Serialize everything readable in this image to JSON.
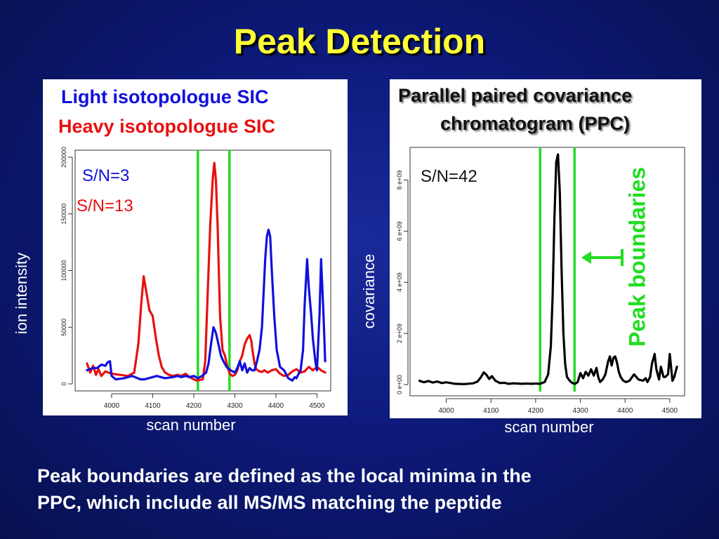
{
  "title": "Peak Detection",
  "left_panel": {
    "legend_light": "Light isotopologue SIC",
    "legend_heavy": "Heavy isotopologue SIC",
    "sn_light": "S/N=3",
    "sn_heavy": "S/N=13",
    "ylabel": "ion intensity",
    "xlabel": "scan number"
  },
  "right_panel": {
    "title_line1": "Parallel paired covariance",
    "title_line2": "chromatogram (PPC)",
    "sn": "S/N=42",
    "ylabel": "covariance",
    "xlabel": "scan number",
    "annotation": "Peak boundaries"
  },
  "footer": {
    "line1": "Peak boundaries are defined as the local minima in the",
    "line2": "PPC, which include all MS/MS matching the peptide"
  },
  "colors": {
    "light": "#1010dd",
    "heavy": "#e81010",
    "ppc": "#000000",
    "boundary": "#22dd22",
    "title": "#ffff33"
  },
  "chart_data": [
    {
      "type": "line",
      "xlim": [
        3930,
        4530
      ],
      "ylim": [
        0,
        200000
      ],
      "xticks": [
        4000,
        4100,
        4200,
        4300,
        4400,
        4500
      ],
      "yticks": [
        0,
        50000,
        100000,
        150000,
        200000
      ],
      "ytick_labels": [
        "0",
        "50000",
        "100000",
        "150000",
        "200000"
      ],
      "boundaries": [
        4210,
        4287
      ],
      "series": [
        {
          "key": "heavy",
          "x": [
            3940,
            3948,
            3955,
            3962,
            3968,
            3975,
            3985,
            4000,
            4020,
            4040,
            4055,
            4065,
            4072,
            4078,
            4085,
            4092,
            4100,
            4108,
            4115,
            4122,
            4130,
            4140,
            4150,
            4160,
            4170,
            4180,
            4190,
            4200,
            4208,
            4215,
            4222,
            4228,
            4234,
            4240,
            4246,
            4250,
            4254,
            4258,
            4264,
            4270,
            4276,
            4282,
            4288,
            4294,
            4300,
            4306,
            4312,
            4318,
            4324,
            4330,
            4336,
            4340,
            4344,
            4348,
            4352,
            4356,
            4360,
            4366,
            4372,
            4380,
            4390,
            4400,
            4410,
            4420,
            4430,
            4440,
            4450,
            4460,
            4470,
            4480,
            4490,
            4500,
            4510,
            4520
          ],
          "y": [
            18000,
            10000,
            16000,
            8000,
            13000,
            7000,
            11000,
            9000,
            8000,
            7000,
            10000,
            35000,
            70000,
            95000,
            80000,
            65000,
            60000,
            40000,
            25000,
            15000,
            10000,
            8000,
            7000,
            8000,
            7000,
            9000,
            6000,
            4000,
            3000,
            3500,
            4000,
            20000,
            80000,
            140000,
            180000,
            195000,
            180000,
            140000,
            60000,
            30000,
            25000,
            15000,
            9000,
            7000,
            8000,
            12000,
            20000,
            25000,
            35000,
            40000,
            43000,
            38000,
            27000,
            18000,
            13000,
            12000,
            11000,
            10500,
            12000,
            10000,
            12000,
            13000,
            9000,
            7000,
            8000,
            11000,
            13000,
            10000,
            11000,
            15000,
            12000,
            15000,
            12000,
            10000
          ]
        },
        {
          "key": "light",
          "x": [
            3940,
            3955,
            3965,
            3975,
            3985,
            3990,
            3996,
            4000,
            4010,
            4030,
            4050,
            4070,
            4080,
            4090,
            4100,
            4110,
            4120,
            4130,
            4140,
            4150,
            4160,
            4170,
            4180,
            4190,
            4200,
            4210,
            4220,
            4230,
            4236,
            4242,
            4248,
            4254,
            4260,
            4266,
            4272,
            4280,
            4290,
            4300,
            4306,
            4312,
            4318,
            4324,
            4330,
            4336,
            4342,
            4348,
            4354,
            4360,
            4366,
            4370,
            4374,
            4378,
            4382,
            4386,
            4390,
            4396,
            4402,
            4410,
            4420,
            4430,
            4440,
            4446,
            4450,
            4454,
            4460,
            4466,
            4470,
            4476,
            4480,
            4486,
            4490,
            4496,
            4500,
            4506,
            4510,
            4516,
            4520
          ],
          "y": [
            12000,
            14000,
            14000,
            17000,
            16000,
            19000,
            20000,
            7000,
            4000,
            5000,
            7000,
            4000,
            4000,
            5000,
            6000,
            7000,
            6000,
            5000,
            5500,
            6000,
            7000,
            6000,
            7000,
            6000,
            7000,
            5000,
            7000,
            10000,
            18000,
            35000,
            50000,
            45000,
            35000,
            25000,
            20000,
            15000,
            12000,
            10000,
            14000,
            20000,
            12000,
            18000,
            10000,
            14000,
            12000,
            12000,
            20000,
            30000,
            50000,
            80000,
            110000,
            130000,
            136000,
            130000,
            100000,
            60000,
            30000,
            15000,
            12000,
            5000,
            3000,
            6000,
            5000,
            8000,
            12000,
            30000,
            70000,
            110000,
            85000,
            60000,
            40000,
            20000,
            12000,
            60000,
            110000,
            60000,
            20000
          ]
        }
      ]
    },
    {
      "type": "line",
      "xlim": [
        3930,
        4530
      ],
      "ylim": [
        0,
        9000000000
      ],
      "xticks": [
        4000,
        4100,
        4200,
        4300,
        4400,
        4500
      ],
      "yticks": [
        0,
        2000000000,
        4000000000,
        6000000000,
        8000000000
      ],
      "ytick_labels": [
        "0  e+00",
        "2  e+09",
        "4  e+09",
        "6  e+09",
        "8  e+09"
      ],
      "boundaries": [
        4210,
        4287
      ],
      "series": [
        {
          "key": "ppc",
          "x": [
            3940,
            3950,
            3960,
            3970,
            3980,
            3990,
            4000,
            4020,
            4040,
            4060,
            4070,
            4078,
            4084,
            4090,
            4096,
            4102,
            4110,
            4120,
            4130,
            4140,
            4150,
            4160,
            4170,
            4180,
            4190,
            4200,
            4210,
            4220,
            4228,
            4234,
            4238,
            4242,
            4246,
            4250,
            4254,
            4258,
            4262,
            4266,
            4270,
            4276,
            4282,
            4288,
            4294,
            4300,
            4306,
            4312,
            4318,
            4324,
            4330,
            4336,
            4340,
            4344,
            4350,
            4356,
            4362,
            4366,
            4370,
            4374,
            4378,
            4382,
            4386,
            4390,
            4396,
            4402,
            4410,
            4420,
            4430,
            4440,
            4446,
            4450,
            4456,
            4460,
            4466,
            4470,
            4476,
            4480,
            4486,
            4490,
            4496,
            4500,
            4506,
            4510,
            4516
          ],
          "y": [
            150000000,
            90000000,
            140000000,
            80000000,
            120000000,
            60000000,
            90000000,
            30000000,
            20000000,
            50000000,
            120000000,
            300000000,
            480000000,
            380000000,
            220000000,
            330000000,
            150000000,
            60000000,
            70000000,
            30000000,
            50000000,
            40000000,
            30000000,
            40000000,
            30000000,
            40000000,
            30000000,
            100000000,
            400000000,
            1500000000,
            3500000000,
            6500000000,
            8700000000,
            9000000000,
            7500000000,
            4500000000,
            2000000000,
            800000000,
            300000000,
            150000000,
            60000000,
            30000000,
            100000000,
            450000000,
            250000000,
            500000000,
            350000000,
            600000000,
            350000000,
            650000000,
            300000000,
            100000000,
            200000000,
            400000000,
            900000000,
            1100000000,
            750000000,
            1050000000,
            1100000000,
            850000000,
            500000000,
            300000000,
            150000000,
            100000000,
            150000000,
            400000000,
            200000000,
            150000000,
            250000000,
            100000000,
            300000000,
            800000000,
            1200000000,
            600000000,
            200000000,
            700000000,
            300000000,
            300000000,
            400000000,
            1200000000,
            150000000,
            300000000,
            700000000
          ]
        }
      ]
    }
  ]
}
